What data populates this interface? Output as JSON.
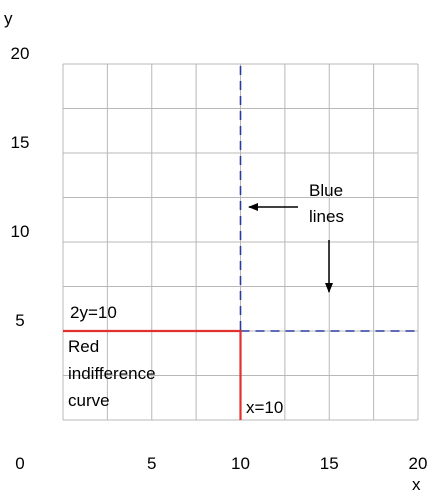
{
  "chart_data": {
    "type": "line",
    "title": "",
    "xlabel": "x",
    "ylabel": "y",
    "xlim": [
      0,
      20
    ],
    "ylim": [
      0,
      20
    ],
    "x_ticks": [
      {
        "value": 0,
        "label": "0"
      },
      {
        "value": 5,
        "label": "5"
      },
      {
        "value": 10,
        "label": "10"
      },
      {
        "value": 15,
        "label": "15"
      },
      {
        "value": 20,
        "label": "20"
      }
    ],
    "y_ticks": [
      {
        "value": 5,
        "label": "5"
      },
      {
        "value": 10,
        "label": "10"
      },
      {
        "value": 15,
        "label": "15"
      },
      {
        "value": 20,
        "label": "20"
      }
    ],
    "grid": true,
    "grid_step": 2.5,
    "series": [
      {
        "style": "dashed",
        "color": "#2a3a9e",
        "points": [
          [
            10,
            0
          ],
          [
            10,
            20
          ]
        ]
      },
      {
        "style": "dashed",
        "color": "#2a3a9e",
        "points": [
          [
            10,
            5
          ],
          [
            20,
            5
          ]
        ]
      },
      {
        "style": "solid",
        "color": "#e03030",
        "points": [
          [
            0,
            5
          ],
          [
            10,
            5
          ],
          [
            10,
            0
          ]
        ]
      }
    ],
    "annotations": [
      {
        "text": "Blue",
        "group": "blue"
      },
      {
        "text": "lines",
        "group": "blue"
      },
      {
        "text": "2y=10",
        "group": "red-eq"
      },
      {
        "text": "Red",
        "group": "red-label"
      },
      {
        "text": "indifference",
        "group": "red-label"
      },
      {
        "text": "curve",
        "group": "red-label"
      },
      {
        "text": "x=10",
        "group": "x-eq"
      }
    ],
    "colors": {
      "grid": "#b8b8b8",
      "blue": "#2a3a9e",
      "red": "#e03030",
      "text": "#000000"
    }
  }
}
